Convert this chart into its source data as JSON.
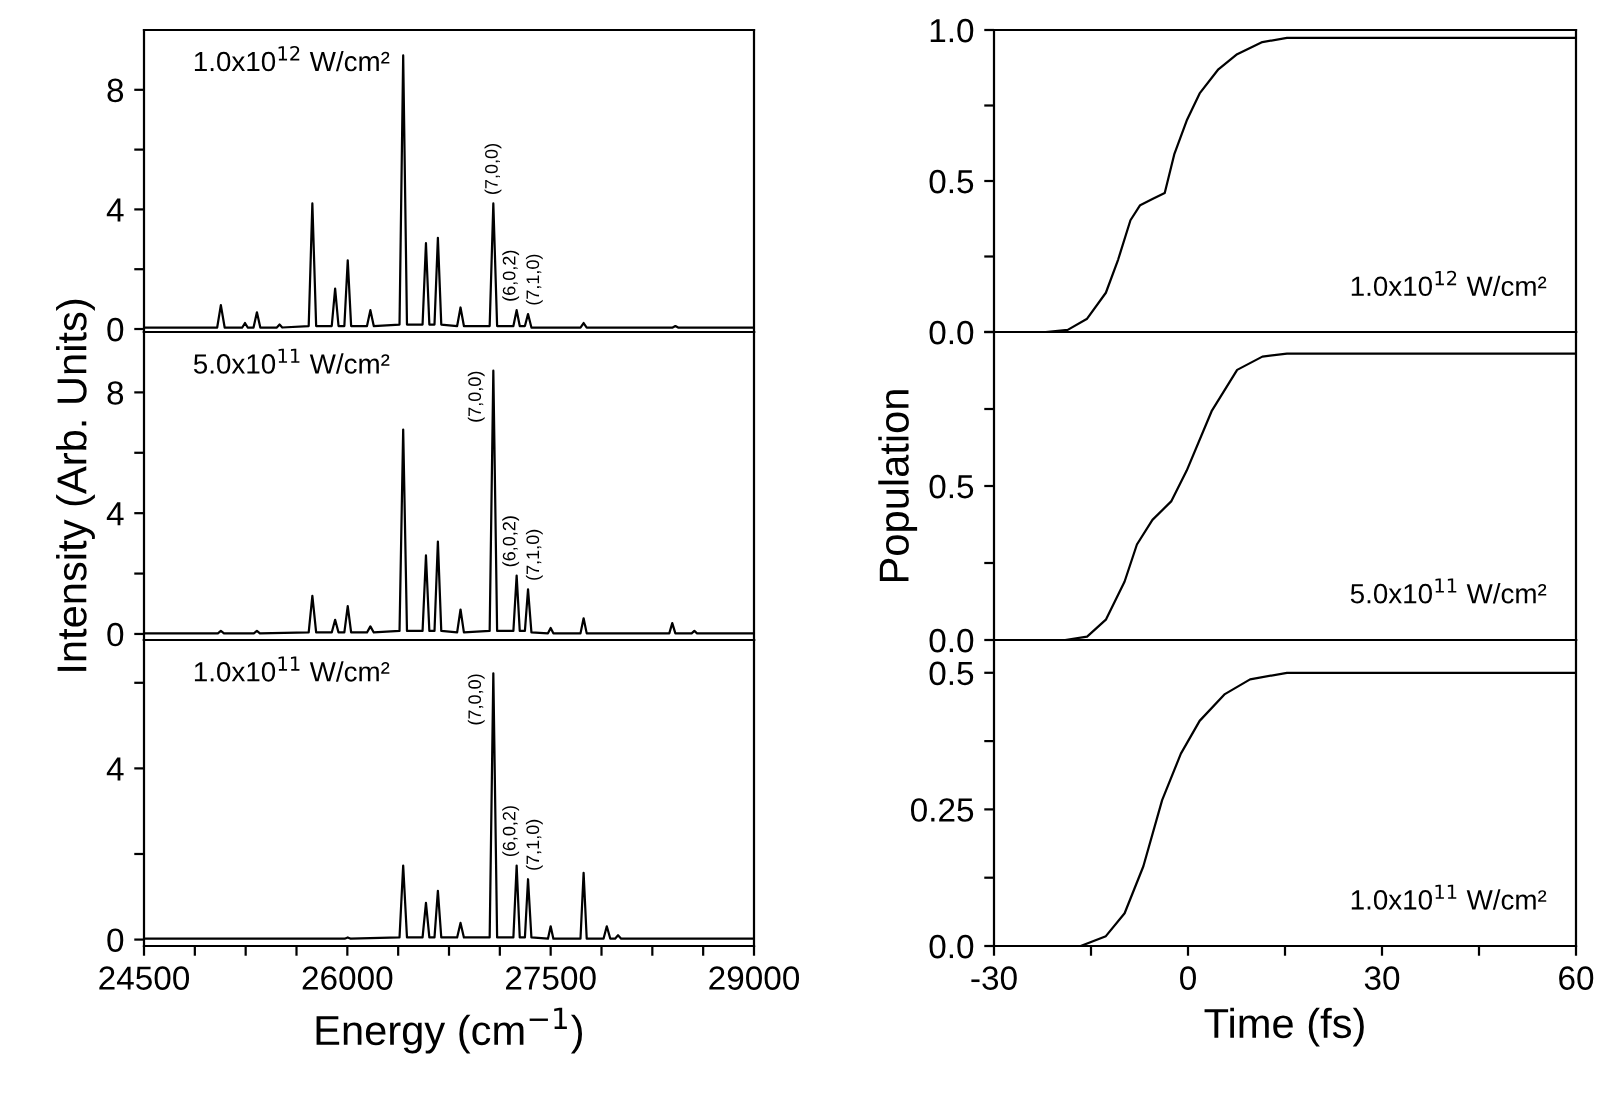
{
  "chart_data": [
    {
      "type": "line",
      "xlim": [
        24500,
        29000
      ],
      "ylim": [
        -0.1,
        10
      ],
      "yticks": [
        0,
        {
          "value": 2,
          "label": null
        },
        4,
        {
          "value": 6,
          "label": null
        },
        8
      ],
      "tick_labels": "y",
      "series": [
        {
          "color": "#000000",
          "x": [
            24500,
            25040,
            25067,
            25095,
            25225,
            25245,
            25265,
            25308,
            25333,
            25358,
            25480,
            25500,
            25520,
            25715,
            25742,
            25770,
            25885,
            25910,
            25935,
            25978,
            26003,
            26028,
            26145,
            26170,
            26195,
            26385,
            26412,
            26440,
            26555,
            26580,
            26605,
            26643,
            26668,
            26693,
            26810,
            26835,
            26860,
            27050,
            27077,
            27105,
            27225,
            27249,
            27272,
            27310,
            27333,
            27358,
            27720,
            27743,
            27766,
            28400,
            28420,
            28440,
            29000
          ],
          "values": [
            0.05,
            0.05,
            0.8,
            0.05,
            0.05,
            0.2,
            0.05,
            0.05,
            0.56,
            0.05,
            0.05,
            0.15,
            0.05,
            0.1,
            4.2,
            0.1,
            0.1,
            1.35,
            0.1,
            0.1,
            2.3,
            0.1,
            0.1,
            0.63,
            0.1,
            0.15,
            9.15,
            0.15,
            0.15,
            2.87,
            0.15,
            0.15,
            3.05,
            0.15,
            0.1,
            0.72,
            0.1,
            0.1,
            4.2,
            0.1,
            0.1,
            0.63,
            0.1,
            0.1,
            0.5,
            0.05,
            0.05,
            0.2,
            0.05,
            0.05,
            0.1,
            0.05,
            0.05
          ]
        }
      ],
      "annotations": [
        "1.0x10$^{12}$ W/cm²",
        {
          "text": "(7,0,0)",
          "x": 27077,
          "y": 4.2
        },
        {
          "text": "(6,0,2)",
          "x": 27249,
          "y": 0.63
        },
        {
          "text": "(7,1,0)",
          "x": 27333,
          "y": 0.5
        }
      ]
    },
    {
      "type": "line",
      "xlim": [
        -30,
        60
      ],
      "ylim": [
        0,
        1.0
      ],
      "yticks": [
        {
          "value": 0,
          "label": "0.0"
        },
        {
          "value": 0.25,
          "label": null
        },
        0.5,
        {
          "value": 0.75,
          "label": null
        },
        {
          "value": 1,
          "label": "1.0"
        }
      ],
      "tick_labels": "y",
      "series": [
        {
          "color": "#000000",
          "x": [
            -22,
            -18.6,
            -15.6,
            -12.7,
            -10.8,
            -8.9,
            -7.4,
            -5.5,
            -3.6,
            -2.1,
            -0.2,
            1.8,
            4.7,
            7.6,
            11.5,
            15.3,
            60
          ],
          "values": [
            0,
            0.007,
            0.044,
            0.13,
            0.24,
            0.37,
            0.42,
            0.44,
            0.46,
            0.59,
            0.7,
            0.79,
            0.87,
            0.92,
            0.96,
            0.974,
            0.974
          ]
        }
      ],
      "annotations": [
        "1.0x10$^{12}$ W/cm²"
      ]
    },
    {
      "type": "line",
      "xlim": [
        24500,
        29000
      ],
      "ylim": [
        -0.2,
        10
      ],
      "yticks": [
        0,
        {
          "value": 2,
          "label": null
        },
        4,
        {
          "value": 6,
          "label": null
        },
        8
      ],
      "tick_labels": "y",
      "ylabel": "Intensity (Arb. Units)",
      "series": [
        {
          "color": "#000000",
          "x": [
            24500,
            25045,
            25067,
            25090,
            25310,
            25333,
            25355,
            25715,
            25742,
            25770,
            25885,
            25910,
            25935,
            25978,
            26003,
            26028,
            26145,
            26170,
            26195,
            26385,
            26412,
            26440,
            26555,
            26580,
            26605,
            26643,
            26668,
            26693,
            26810,
            26835,
            26860,
            27050,
            27077,
            27105,
            27225,
            27249,
            27272,
            27310,
            27333,
            27358,
            27480,
            27500,
            27520,
            27720,
            27743,
            27766,
            28375,
            28397,
            28420,
            28540,
            28560,
            28580,
            29000
          ],
          "values": [
            0.02,
            0.02,
            0.1,
            0.02,
            0.02,
            0.1,
            0.02,
            0.05,
            1.26,
            0.05,
            0.05,
            0.47,
            0.05,
            0.05,
            0.92,
            0.05,
            0.05,
            0.25,
            0.05,
            0.1,
            6.77,
            0.1,
            0.1,
            2.6,
            0.1,
            0.1,
            3.06,
            0.1,
            0.05,
            0.81,
            0.05,
            0.1,
            8.72,
            0.1,
            0.1,
            1.93,
            0.1,
            0.1,
            1.48,
            0.05,
            0.02,
            0.2,
            0.02,
            0.02,
            0.52,
            0.02,
            0.02,
            0.36,
            0.02,
            0.02,
            0.1,
            0.02,
            0.02
          ]
        }
      ],
      "annotations": [
        "5.0x10$^{11}$ W/cm²",
        {
          "text": "(7,0,0)",
          "x": 27077,
          "y": 8.72
        },
        {
          "text": "(6,0,2)",
          "x": 27249,
          "y": 1.93
        },
        {
          "text": "(7,1,0)",
          "x": 27333,
          "y": 1.48
        }
      ]
    },
    {
      "type": "line",
      "xlim": [
        -30,
        60
      ],
      "ylim": [
        0,
        1.0
      ],
      "yticks": [
        {
          "value": 0,
          "label": "0.0"
        },
        {
          "value": 0.25,
          "label": null
        },
        0.5,
        {
          "value": 0.75,
          "label": null
        },
        {
          "value": 1.0,
          "label": null
        }
      ],
      "tick_labels": "y",
      "ylabel": "Population",
      "series": [
        {
          "color": "#000000",
          "x": [
            -19,
            -15.6,
            -12.7,
            -9.8,
            -7.9,
            -5.5,
            -2.6,
            -0.2,
            3.7,
            7.6,
            11.5,
            15.3,
            60
          ],
          "values": [
            0,
            0.011,
            0.066,
            0.19,
            0.31,
            0.39,
            0.45,
            0.55,
            0.745,
            0.877,
            0.92,
            0.93,
            0.93
          ]
        }
      ],
      "annotations": [
        "5.0x10$^{11}$ W/cm²"
      ]
    },
    {
      "type": "line",
      "xlim": [
        24500,
        29000
      ],
      "ylim": [
        -0.15,
        7
      ],
      "xticks": [
        24500,
        {
          "value": 24875,
          "label": null
        },
        {
          "value": 25250,
          "label": null
        },
        {
          "value": 25625,
          "label": null
        },
        26000,
        {
          "value": 26375,
          "label": null
        },
        {
          "value": 26750,
          "label": null
        },
        {
          "value": 27125,
          "label": null
        },
        27500,
        {
          "value": 27875,
          "label": null
        },
        {
          "value": 28250,
          "label": null
        },
        {
          "value": 28625,
          "label": null
        },
        29000
      ],
      "yticks": [
        0,
        {
          "value": 2,
          "label": null
        },
        4,
        {
          "value": 6,
          "label": null
        }
      ],
      "xlabel": "Energy (cm$^{−1}$)",
      "series": [
        {
          "color": "#000000",
          "x": [
            24500,
            25980,
            26003,
            26025,
            26385,
            26412,
            26440,
            26555,
            26580,
            26605,
            26643,
            26668,
            26693,
            26810,
            26835,
            26860,
            27050,
            27077,
            27105,
            27225,
            27249,
            27272,
            27310,
            27333,
            27358,
            27480,
            27500,
            27520,
            27720,
            27743,
            27766,
            27890,
            27914,
            27940,
            27975,
            27997,
            28020,
            29000
          ],
          "values": [
            0.02,
            0.02,
            0.05,
            0.02,
            0.05,
            1.73,
            0.05,
            0.05,
            0.86,
            0.05,
            0.05,
            1.14,
            0.05,
            0.05,
            0.39,
            0.05,
            0.05,
            6.22,
            0.05,
            0.05,
            1.73,
            0.05,
            0.05,
            1.41,
            0.05,
            0.02,
            0.31,
            0.02,
            0.02,
            1.56,
            0.02,
            0.02,
            0.31,
            0.02,
            0.02,
            0.1,
            0.02,
            0.02
          ]
        }
      ],
      "annotations": [
        "1.0x10$^{11}$ W/cm²",
        {
          "text": "(7,0,0)",
          "x": 27077,
          "y": 6.22
        },
        {
          "text": "(6,0,2)",
          "x": 27249,
          "y": 1.73
        },
        {
          "text": "(7,1,0)",
          "x": 27333,
          "y": 1.41
        }
      ]
    },
    {
      "type": "line",
      "xlim": [
        -30,
        60
      ],
      "ylim": [
        0,
        0.56
      ],
      "xticks": [
        -30,
        {
          "value": -15,
          "label": null
        },
        0,
        {
          "value": 15,
          "label": null
        },
        30,
        {
          "value": 45,
          "label": null
        },
        60
      ],
      "yticks": [
        {
          "value": 0,
          "label": "0.0"
        },
        {
          "value": 0.125,
          "label": null
        },
        0.25,
        {
          "value": 0.375,
          "label": null
        },
        0.5
      ],
      "xlabel": "Time (fs)",
      "series": [
        {
          "color": "#000000",
          "x": [
            -16.6,
            -12.7,
            -9.8,
            -6.9,
            -4,
            -1.1,
            1.8,
            5.7,
            9.6,
            15.3,
            60
          ],
          "values": [
            0,
            0.018,
            0.06,
            0.146,
            0.267,
            0.352,
            0.412,
            0.461,
            0.488,
            0.5,
            0.5
          ]
        }
      ],
      "annotations": [
        "1.0x10$^{11}$ W/cm²"
      ]
    }
  ]
}
